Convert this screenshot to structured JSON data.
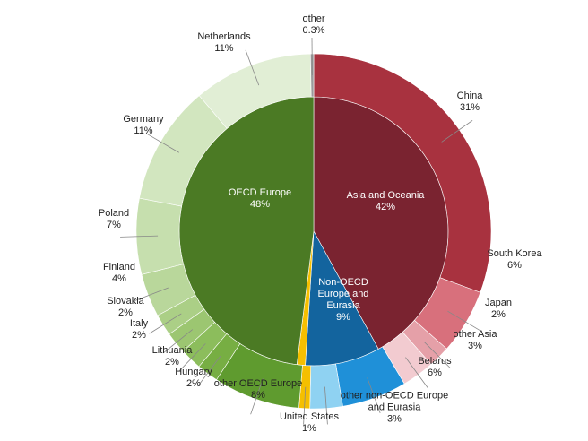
{
  "chart_data": {
    "type": "sunburst",
    "inner": {
      "categories": [
        "Asia and Oceania",
        "Non-OECD Europe and Eurasia",
        null,
        "OECD Europe"
      ],
      "values": [
        42,
        9,
        1,
        48
      ],
      "value_labels": [
        "42%",
        "9%",
        null,
        "48%"
      ],
      "colors": [
        "#7a2330",
        "#13649e",
        "#f5bf00",
        "#4b7a24"
      ]
    },
    "outer": {
      "categories": [
        "China",
        "South Korea",
        "Japan",
        "other Asia",
        "Belarus",
        "other non-OECD Europe and Eurasia",
        "United States",
        "other OECD Europe",
        "Hungary",
        "Lithuania",
        "Italy",
        "Slovakia",
        "Finland",
        "Poland",
        "Germany",
        "Netherlands",
        "other"
      ],
      "values": [
        31,
        6,
        2,
        3,
        6,
        3,
        1,
        8,
        2,
        2,
        2,
        2,
        4,
        7,
        11,
        11,
        0.3
      ],
      "value_labels": [
        "31%",
        "6%",
        "2%",
        "3%",
        "6%",
        "3%",
        "1%",
        "8%",
        "2%",
        "2%",
        "2%",
        "2%",
        "4%",
        "7%",
        "11%",
        "11%",
        "0.3%"
      ],
      "colors": [
        "#a8323f",
        "#d8707c",
        "#e5a0a8",
        "#f2cbd0",
        "#1f90d8",
        "#8fd2f2",
        "#f5bf00",
        "#5f9b2f",
        "#77ae43",
        "#8cbd5c",
        "#9cc671",
        "#abcf86",
        "#b9d79b",
        "#c6dfae",
        "#d2e6bf",
        "#e1eed5",
        "#9a9a9a"
      ]
    }
  }
}
